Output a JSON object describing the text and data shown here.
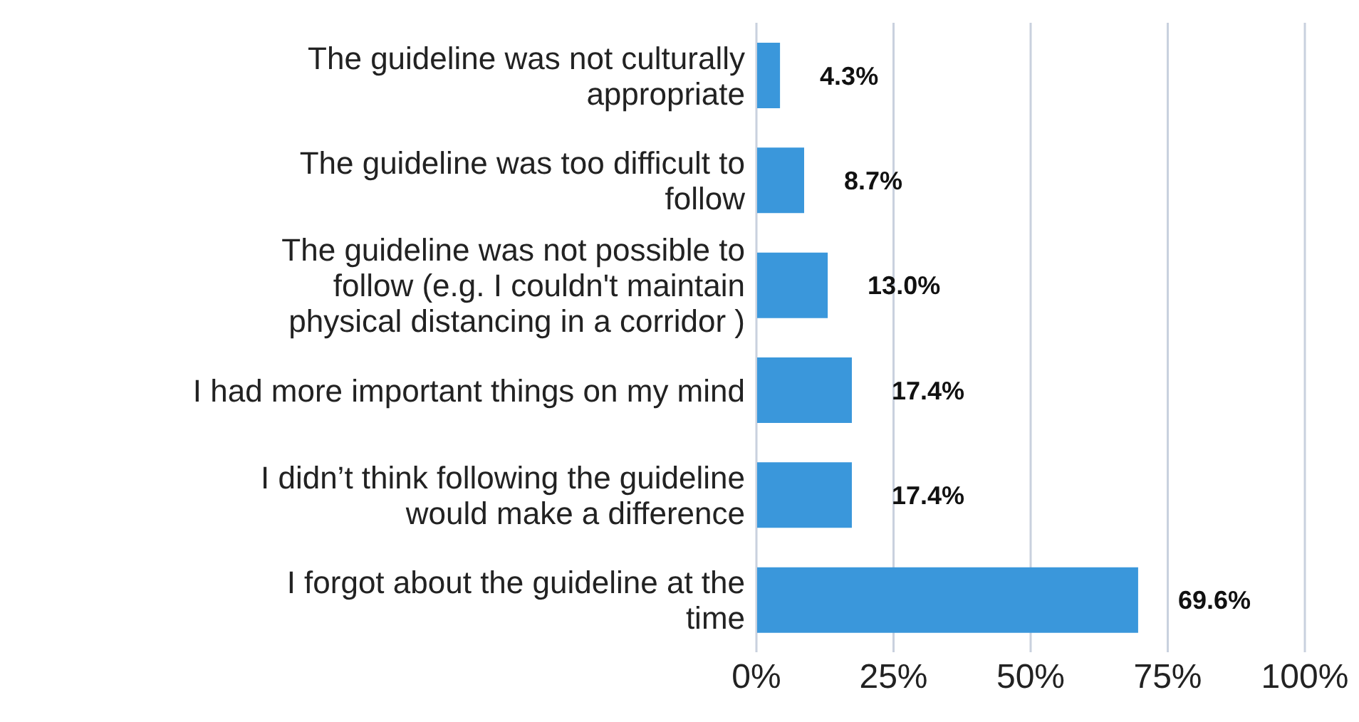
{
  "chart_data": {
    "type": "bar",
    "orientation": "horizontal",
    "categories": [
      "The guideline was not culturally appropriate",
      "The guideline was too difficult to follow",
      "The guideline was not possible to follow (e.g. I couldn't maintain physical distancing in a corridor )",
      "I had more important things on my mind",
      "I didn’t think following the guideline would make a difference",
      "I forgot about the guideline at the time"
    ],
    "values": [
      4.3,
      8.7,
      13.0,
      17.4,
      17.4,
      69.6
    ],
    "value_labels": [
      "4.3%",
      "8.7%",
      "13.0%",
      "17.4%",
      "17.4%",
      "69.6%"
    ],
    "color": "#3a97db",
    "xlim": [
      0,
      100
    ],
    "xticks": [
      {
        "value": 0,
        "label": "0%"
      },
      {
        "value": 25,
        "label": "25%"
      },
      {
        "value": 50,
        "label": "50%"
      },
      {
        "value": 75,
        "label": "75%"
      },
      {
        "value": 100,
        "label": "100%"
      }
    ],
    "grid": "x",
    "legend": false
  }
}
